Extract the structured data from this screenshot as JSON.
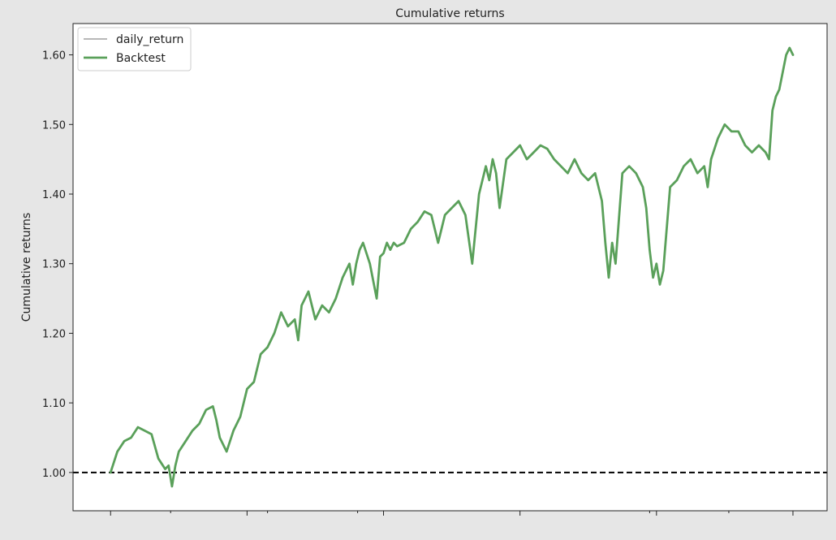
{
  "chart_data": {
    "type": "line",
    "title": "Cumulative returns",
    "xlabel": "",
    "ylabel": "Cumulative returns",
    "ylim": [
      0.945,
      1.645
    ],
    "xlim": [
      -55,
      1050
    ],
    "yticks": [
      1.0,
      1.1,
      1.2,
      1.3,
      1.4,
      1.5,
      1.6
    ],
    "ytick_labels": [
      "1.00",
      "1.10",
      "1.20",
      "1.30",
      "1.40",
      "1.50",
      "1.60"
    ],
    "xticks_major": [
      0,
      200,
      400,
      600,
      800,
      1000
    ],
    "xticks_minor": [
      88,
      230,
      362,
      790,
      906
    ],
    "grid": false,
    "legend_position": "top-left",
    "baseline": {
      "value": 1.0,
      "style": "dashed",
      "color": "#000000"
    },
    "series": [
      {
        "name": "daily_return",
        "color": "#a0a0a0",
        "x": [],
        "values": []
      },
      {
        "name": "Backtest",
        "color": "#5aa05a",
        "x": [
          0,
          10,
          20,
          30,
          40,
          50,
          60,
          70,
          80,
          85,
          90,
          95,
          100,
          110,
          120,
          130,
          140,
          150,
          155,
          160,
          170,
          180,
          190,
          200,
          210,
          220,
          230,
          240,
          250,
          260,
          270,
          275,
          280,
          285,
          290,
          300,
          310,
          320,
          330,
          340,
          350,
          355,
          360,
          365,
          370,
          380,
          390,
          395,
          400,
          405,
          410,
          415,
          420,
          430,
          440,
          450,
          460,
          470,
          480,
          490,
          500,
          510,
          520,
          530,
          540,
          550,
          555,
          560,
          565,
          570,
          580,
          590,
          600,
          610,
          620,
          630,
          640,
          650,
          660,
          670,
          680,
          690,
          700,
          710,
          720,
          725,
          730,
          735,
          740,
          750,
          760,
          770,
          780,
          785,
          790,
          795,
          800,
          805,
          810,
          820,
          830,
          840,
          850,
          860,
          870,
          875,
          880,
          890,
          900,
          910,
          920,
          930,
          940,
          950,
          960,
          965,
          970,
          975,
          980,
          990,
          995,
          1000
        ],
        "values": [
          1.0,
          1.03,
          1.045,
          1.05,
          1.065,
          1.06,
          1.055,
          1.02,
          1.005,
          1.01,
          0.98,
          1.01,
          1.03,
          1.045,
          1.06,
          1.07,
          1.09,
          1.095,
          1.075,
          1.05,
          1.03,
          1.06,
          1.08,
          1.12,
          1.13,
          1.17,
          1.18,
          1.2,
          1.23,
          1.21,
          1.22,
          1.19,
          1.24,
          1.25,
          1.26,
          1.22,
          1.24,
          1.23,
          1.25,
          1.28,
          1.3,
          1.27,
          1.3,
          1.32,
          1.33,
          1.3,
          1.25,
          1.31,
          1.315,
          1.33,
          1.32,
          1.33,
          1.325,
          1.33,
          1.35,
          1.36,
          1.375,
          1.37,
          1.33,
          1.37,
          1.38,
          1.39,
          1.37,
          1.3,
          1.4,
          1.44,
          1.42,
          1.45,
          1.43,
          1.38,
          1.45,
          1.46,
          1.47,
          1.45,
          1.46,
          1.47,
          1.465,
          1.45,
          1.44,
          1.43,
          1.45,
          1.43,
          1.42,
          1.43,
          1.39,
          1.33,
          1.28,
          1.33,
          1.3,
          1.43,
          1.44,
          1.43,
          1.41,
          1.38,
          1.32,
          1.28,
          1.3,
          1.27,
          1.29,
          1.41,
          1.42,
          1.44,
          1.45,
          1.43,
          1.44,
          1.41,
          1.45,
          1.48,
          1.5,
          1.49,
          1.49,
          1.47,
          1.46,
          1.47,
          1.46,
          1.45,
          1.52,
          1.54,
          1.55,
          1.6,
          1.61,
          1.6
        ]
      }
    ]
  }
}
